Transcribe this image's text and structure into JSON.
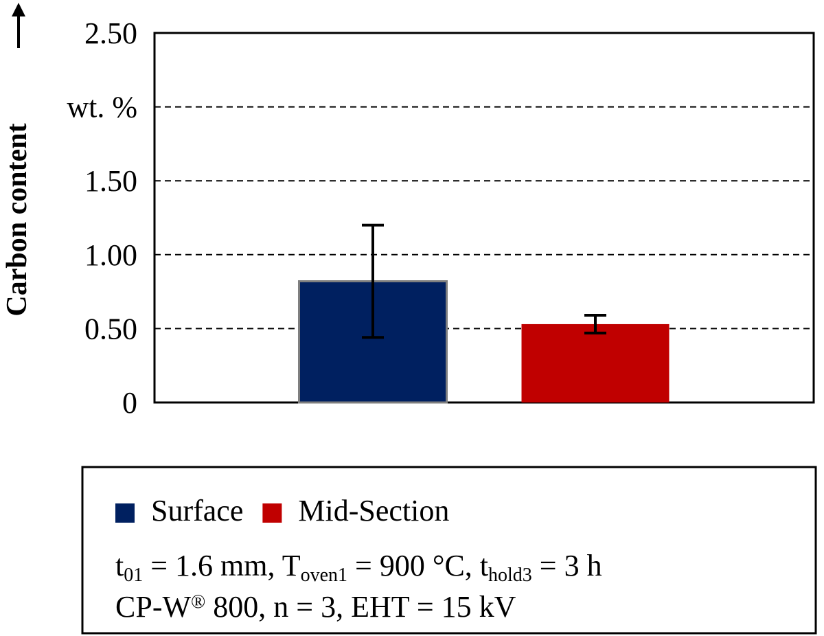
{
  "chart_data": {
    "type": "bar",
    "y_label": "Carbon content",
    "categories": [
      null
    ],
    "series": [
      {
        "name": "Surface",
        "color": "#002060",
        "values": [
          0.82
        ],
        "errors": [
          0.38
        ]
      },
      {
        "name": "Mid-Section",
        "color": "#c00000",
        "values": [
          0.53
        ],
        "errors": [
          0.06
        ]
      }
    ],
    "ylim": [
      0,
      2.5
    ],
    "yticks": [
      0,
      {
        "value": 0.5,
        "label": "0.50"
      },
      {
        "value": 1,
        "label": "1.00"
      },
      {
        "value": 1.5,
        "label": "1.50"
      },
      {
        "value": 2,
        "label": "wt. %"
      },
      {
        "value": 2.5,
        "label": "2.50"
      }
    ],
    "grid": true,
    "legend": "bottom",
    "notes": [
      [
        {
          "text": "t"
        },
        {
          "text": "01",
          "pos": "sub"
        },
        {
          "text": " = 1.6 mm, T"
        },
        {
          "text": "oven1",
          "pos": "sub"
        },
        {
          "text": " = 900 °C, t"
        },
        {
          "text": "hold3",
          "pos": "sub"
        },
        {
          "text": " = 3 h"
        }
      ],
      [
        {
          "text": "CP-W"
        },
        {
          "text": "®",
          "pos": "sup"
        },
        {
          "text": " 800, n = 3, EHT = 15 kV"
        }
      ]
    ]
  }
}
